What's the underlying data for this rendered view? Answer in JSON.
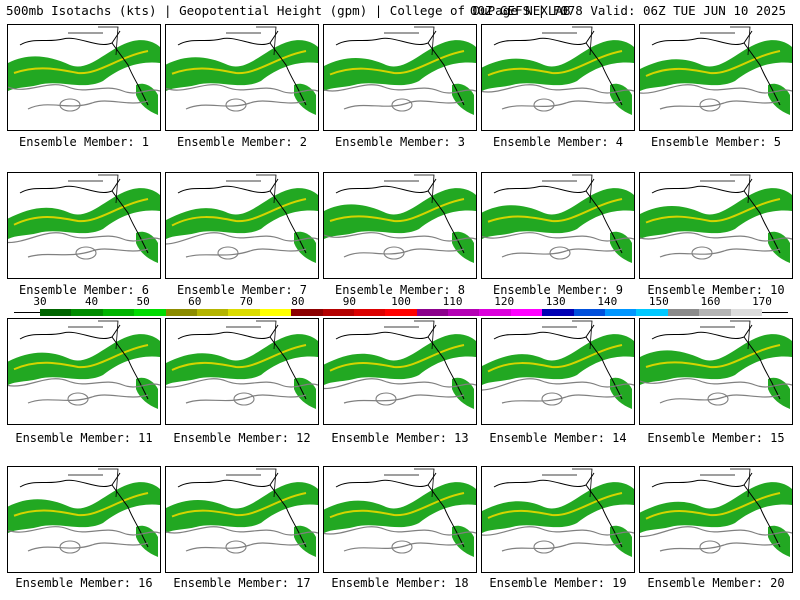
{
  "header": {
    "left_title": "500mb Isotachs (kts) | Geopotential Height (gpm) | College of DuPage NEXLAB",
    "right_title": "00Z GEFS | F078 Valid: 06Z TUE JUN 10 2025"
  },
  "panels": [
    {
      "label": "Ensemble Member: 1"
    },
    {
      "label": "Ensemble Member: 2"
    },
    {
      "label": "Ensemble Member: 3"
    },
    {
      "label": "Ensemble Member: 4"
    },
    {
      "label": "Ensemble Member: 5"
    },
    {
      "label": "Ensemble Member: 6"
    },
    {
      "label": "Ensemble Member: 7"
    },
    {
      "label": "Ensemble Member: 8"
    },
    {
      "label": "Ensemble Member: 9"
    },
    {
      "label": "Ensemble Member: 10"
    },
    {
      "label": "Ensemble Member: 11"
    },
    {
      "label": "Ensemble Member: 12"
    },
    {
      "label": "Ensemble Member: 13"
    },
    {
      "label": "Ensemble Member: 14"
    },
    {
      "label": "Ensemble Member: 15"
    },
    {
      "label": "Ensemble Member: 16"
    },
    {
      "label": "Ensemble Member: 17"
    },
    {
      "label": "Ensemble Member: 18"
    },
    {
      "label": "Ensemble Member: 19"
    },
    {
      "label": "Ensemble Member: 20"
    }
  ],
  "colorbar": {
    "labels": [
      "30",
      "40",
      "50",
      "60",
      "70",
      "80",
      "90",
      "100",
      "110",
      "120",
      "130",
      "140",
      "150",
      "160",
      "170"
    ],
    "colors": [
      "#006400",
      "#008c00",
      "#00b400",
      "#00dc00",
      "#8c8c00",
      "#b4b400",
      "#dcdc00",
      "#ffff00",
      "#8c0000",
      "#b40000",
      "#dc0000",
      "#ff0000",
      "#8c008c",
      "#b400b4",
      "#dc00dc",
      "#ff00ff",
      "#0000b4",
      "#0050dc",
      "#0096ff",
      "#00c8ff",
      "#8c8c8c",
      "#b4b4b4",
      "#dcdcdc"
    ]
  }
}
